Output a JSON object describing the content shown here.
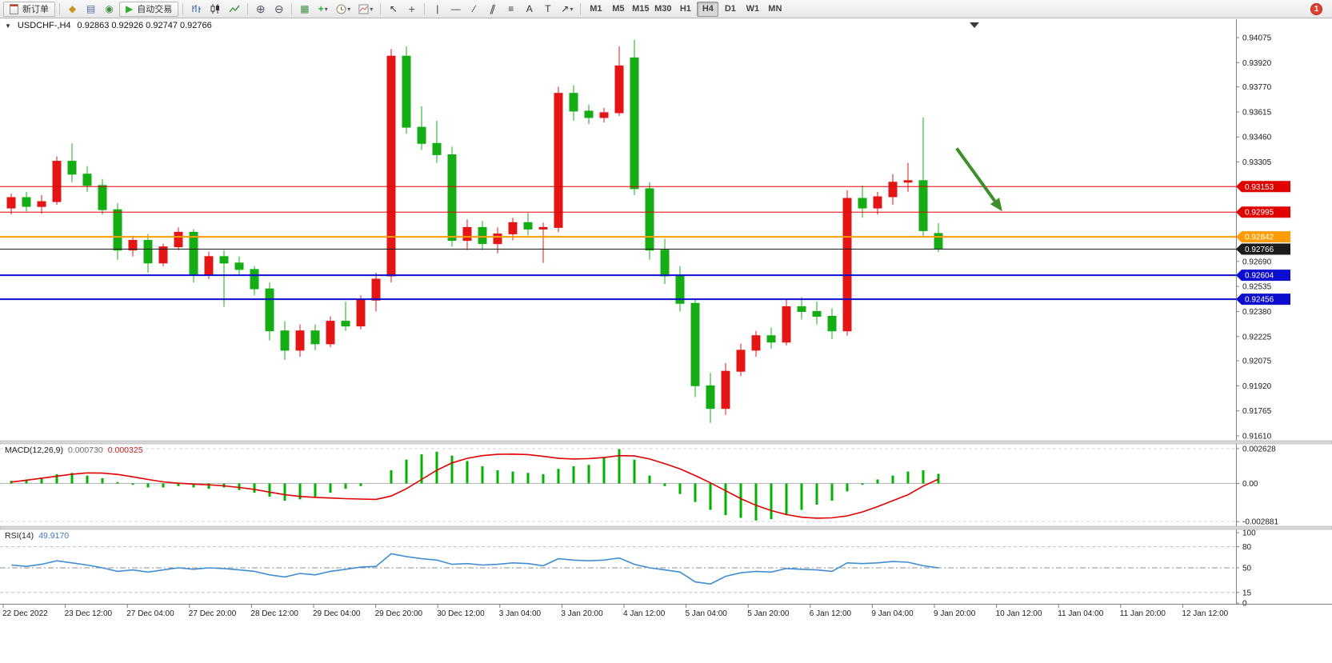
{
  "toolbar": {
    "new_order_label": "新订单",
    "auto_trading_label": "自动交易",
    "timeframes": [
      "M1",
      "M5",
      "M15",
      "M30",
      "H1",
      "H4",
      "D1",
      "W1",
      "MN"
    ],
    "active_timeframe": "H4",
    "notification_count": "1"
  },
  "icons": {
    "one_click": "▼",
    "dropdown": "▾",
    "symbols": "◆",
    "market_watch": "▤",
    "navigator": "◉",
    "auto_play": "▶",
    "zoom_in": "⊕",
    "zoom_out": "⊖",
    "tile": "▦",
    "indicator_plus": "+",
    "cursor": "↖",
    "crosshair": "+",
    "vline": "|",
    "hline": "—",
    "trend": "∕",
    "channel": "∥",
    "fibo": "≡",
    "text": "A",
    "label": "T",
    "shapes": "↗"
  },
  "chart": {
    "title_symbol": "USDCHF-,H4",
    "title_ohlc": "0.92863 0.92926 0.92747 0.92766"
  },
  "chart_data": {
    "type": "candlestick",
    "symbol": "USDCHF-",
    "timeframe": "H4",
    "ohlc_display": {
      "open": "0.92863",
      "high": "0.92926",
      "low": "0.92747",
      "close": "0.92766"
    },
    "colors": {
      "up": "#e31515",
      "down": "#14ad14"
    },
    "candles": [
      [
        0.9302,
        0.9311,
        0.9298,
        0.93085
      ],
      [
        0.93085,
        0.9312,
        0.93,
        0.9303
      ],
      [
        0.9303,
        0.931,
        0.92985,
        0.9306
      ],
      [
        0.9306,
        0.9334,
        0.9304,
        0.9331
      ],
      [
        0.9331,
        0.9342,
        0.9318,
        0.9323
      ],
      [
        0.9323,
        0.9328,
        0.9312,
        0.9316
      ],
      [
        0.9316,
        0.932,
        0.9298,
        0.9301
      ],
      [
        0.9301,
        0.9305,
        0.927,
        0.9276
      ],
      [
        0.9276,
        0.9285,
        0.9272,
        0.9282
      ],
      [
        0.9282,
        0.9286,
        0.9262,
        0.9268
      ],
      [
        0.9268,
        0.928,
        0.9266,
        0.9278
      ],
      [
        0.9278,
        0.929,
        0.9276,
        0.9287
      ],
      [
        0.9287,
        0.9289,
        0.9256,
        0.9261
      ],
      [
        0.9261,
        0.9275,
        0.9258,
        0.9272
      ],
      [
        0.9272,
        0.9276,
        0.9241,
        0.9268
      ],
      [
        0.9268,
        0.9272,
        0.926,
        0.9264
      ],
      [
        0.9264,
        0.9266,
        0.9248,
        0.9252
      ],
      [
        0.9252,
        0.9256,
        0.922,
        0.9226
      ],
      [
        0.9226,
        0.9232,
        0.9208,
        0.9214
      ],
      [
        0.9214,
        0.923,
        0.921,
        0.9226
      ],
      [
        0.9226,
        0.923,
        0.9214,
        0.9218
      ],
      [
        0.9218,
        0.9235,
        0.9216,
        0.9232
      ],
      [
        0.9232,
        0.9244,
        0.9226,
        0.9229
      ],
      [
        0.9229,
        0.9248,
        0.9227,
        0.9245
      ],
      [
        0.9245,
        0.9262,
        0.9238,
        0.9258
      ],
      [
        0.926,
        0.94005,
        0.9256,
        0.9396
      ],
      [
        0.9396,
        0.9402,
        0.9348,
        0.9352
      ],
      [
        0.9352,
        0.9365,
        0.9338,
        0.9342
      ],
      [
        0.9342,
        0.9356,
        0.933,
        0.9335
      ],
      [
        0.9335,
        0.934,
        0.9278,
        0.9282
      ],
      [
        0.9282,
        0.9295,
        0.9276,
        0.929
      ],
      [
        0.929,
        0.9294,
        0.9276,
        0.928
      ],
      [
        0.928,
        0.929,
        0.9274,
        0.9286
      ],
      [
        0.9286,
        0.9296,
        0.9282,
        0.9293
      ],
      [
        0.9293,
        0.9299,
        0.9285,
        0.9289
      ],
      [
        0.9289,
        0.9293,
        0.9268,
        0.929
      ],
      [
        0.929,
        0.9377,
        0.9287,
        0.9373
      ],
      [
        0.9373,
        0.9378,
        0.9356,
        0.9362
      ],
      [
        0.9362,
        0.9366,
        0.9354,
        0.9358
      ],
      [
        0.9358,
        0.9364,
        0.9355,
        0.9361
      ],
      [
        0.9361,
        0.9402,
        0.9359,
        0.939
      ],
      [
        0.9395,
        0.9406,
        0.931,
        0.9314
      ],
      [
        0.9314,
        0.9318,
        0.927,
        0.9276
      ],
      [
        0.9276,
        0.9283,
        0.9255,
        0.926
      ],
      [
        0.926,
        0.9266,
        0.9238,
        0.9243
      ],
      [
        0.9243,
        0.9246,
        0.9185,
        0.9192
      ],
      [
        0.9192,
        0.92,
        0.9169,
        0.9178
      ],
      [
        0.9178,
        0.9206,
        0.9174,
        0.9201
      ],
      [
        0.9201,
        0.9218,
        0.9198,
        0.9214
      ],
      [
        0.9214,
        0.9226,
        0.921,
        0.9223
      ],
      [
        0.9223,
        0.9228,
        0.9215,
        0.9219
      ],
      [
        0.9219,
        0.9246,
        0.9217,
        0.9241
      ],
      [
        0.9241,
        0.9247,
        0.9233,
        0.9238
      ],
      [
        0.9238,
        0.9244,
        0.923,
        0.9235
      ],
      [
        0.9235,
        0.924,
        0.9221,
        0.9226
      ],
      [
        0.9226,
        0.9313,
        0.9223,
        0.9308
      ],
      [
        0.9308,
        0.9316,
        0.9296,
        0.9302
      ],
      [
        0.9302,
        0.9312,
        0.9298,
        0.9309
      ],
      [
        0.9309,
        0.9323,
        0.9304,
        0.9318
      ],
      [
        0.9318,
        0.933,
        0.9312,
        0.9319
      ],
      [
        0.9319,
        0.9358,
        0.9284,
        0.9288
      ],
      [
        0.92863,
        0.92926,
        0.92747,
        0.92766
      ]
    ],
    "price_axis_ticks": [
      "0.94075",
      "0.93920",
      "0.93770",
      "0.93615",
      "0.93460",
      "0.93305",
      "0.92690",
      "0.92535",
      "0.92380",
      "0.92225",
      "0.92075",
      "0.91920",
      "0.91765",
      "0.91610"
    ],
    "level_lines": [
      {
        "price": 0.93153,
        "label": "0.93153",
        "color": "#e00000",
        "width": 1
      },
      {
        "price": 0.92995,
        "label": "0.92995",
        "color": "#e00000",
        "width": 1
      },
      {
        "price": 0.92842,
        "label": "0.92842",
        "color": "#ff9d00",
        "width": 2
      },
      {
        "price": 0.92766,
        "label": "0.92766",
        "color": "#1c1c1c",
        "width": 1
      },
      {
        "price": 0.92604,
        "label": "0.92604",
        "color": "#0d0dd0",
        "width": 2
      },
      {
        "price": 0.92456,
        "label": "0.92456",
        "color": "#0d0dd0",
        "width": 2
      }
    ],
    "time_labels": [
      "22 Dec 2022",
      "23 Dec 12:00",
      "27 Dec 04:00",
      "27 Dec 20:00",
      "28 Dec 12:00",
      "29 Dec 04:00",
      "29 Dec 20:00",
      "30 Dec 12:00",
      "3 Jan 04:00",
      "3 Jan 20:00",
      "4 Jan 12:00",
      "5 Jan 04:00",
      "5 Jan 20:00",
      "6 Jan 12:00",
      "9 Jan 04:00",
      "9 Jan 20:00",
      "10 Jan 12:00",
      "11 Jan 04:00",
      "11 Jan 20:00",
      "12 Jan 12:00"
    ],
    "macd": {
      "title": "MACD(12,26,9)",
      "value_main": "0.000730",
      "value_signal": "0.000325",
      "hist_color": "#00b300",
      "signal_color": "#e00000",
      "axis": [
        {
          "label": "0.002628",
          "value": 0.002628
        },
        {
          "label": "0.00",
          "value": 0
        },
        {
          "label": "-0.002881",
          "value": -0.002881
        }
      ],
      "histogram": [
        0.0002,
        0.0003,
        0.0004,
        0.0007,
        0.0008,
        0.0006,
        0.0004,
        0.0001,
        -0.0001,
        -0.0003,
        -0.0003,
        -0.0002,
        -0.0003,
        -0.0004,
        -0.0003,
        -0.0005,
        -0.0007,
        -0.001,
        -0.0013,
        -0.0012,
        -0.001,
        -0.0007,
        -0.0004,
        -0.0002,
        0,
        0.001,
        0.0018,
        0.0022,
        0.0024,
        0.0021,
        0.0017,
        0.0013,
        0.001,
        0.0009,
        0.0008,
        0.0007,
        0.0011,
        0.0013,
        0.0014,
        0.002,
        0.0026,
        0.0018,
        0.0006,
        -0.0002,
        -0.0008,
        -0.0014,
        -0.002,
        -0.0024,
        -0.0026,
        -0.0028,
        -0.0027,
        -0.0024,
        -0.002,
        -0.0016,
        -0.0013,
        -0.0006,
        -0.0001,
        0.0003,
        0.0006,
        0.0009,
        0.001,
        0.00073
      ],
      "signal": [
        0.0001,
        0.00025,
        0.0004,
        0.00055,
        0.0007,
        0.0008,
        0.00078,
        0.00068,
        0.0005,
        0.0003,
        0.00012,
        2e-05,
        -5e-05,
        -0.0001,
        -0.00018,
        -0.0003,
        -0.00045,
        -0.00065,
        -0.00085,
        -0.00098,
        -0.00105,
        -0.0011,
        -0.00115,
        -0.00118,
        -0.0012,
        -0.00095,
        -0.0004,
        0.0003,
        0.001,
        0.00155,
        0.0019,
        0.0021,
        0.0022,
        0.00222,
        0.00218,
        0.00205,
        0.0019,
        0.00185,
        0.00188,
        0.00196,
        0.0021,
        0.00208,
        0.00185,
        0.0015,
        0.0011,
        0.0006,
        5e-05,
        -0.00055,
        -0.00115,
        -0.00165,
        -0.00205,
        -0.00235,
        -0.00255,
        -0.00262,
        -0.0026,
        -0.00245,
        -0.00215,
        -0.00175,
        -0.0013,
        -0.00085,
        -0.0002,
        0.000325
      ]
    },
    "rsi": {
      "title": "RSI(14)",
      "value": "49.9170",
      "line_color": "#3f8fd2",
      "levels": [
        80,
        50,
        15
      ],
      "axis": [
        {
          "label": "100",
          "value": 100
        },
        {
          "label": "80",
          "value": 80
        },
        {
          "label": "50",
          "value": 50
        },
        {
          "label": "15",
          "value": 15
        },
        {
          "label": "0",
          "value": 0
        }
      ],
      "values": [
        54,
        52,
        55,
        60,
        57,
        54,
        50,
        45,
        47,
        44,
        47,
        50,
        48,
        50,
        49,
        47,
        45,
        40,
        37,
        42,
        40,
        45,
        48,
        51,
        52,
        70,
        66,
        63,
        61,
        55,
        56,
        54,
        55,
        57,
        56,
        53,
        63,
        61,
        60,
        61,
        64,
        55,
        50,
        47,
        44,
        30,
        27,
        38,
        43,
        45,
        44,
        49,
        48,
        47,
        45,
        57,
        56,
        57,
        59,
        58,
        53,
        49.917
      ],
      "ylim": [
        0,
        100
      ]
    },
    "annotation_arrow": {
      "from_slot": 62.2,
      "from_price": 0.9339,
      "to_slot": 65.2,
      "to_price": 0.93,
      "color": "#3f8f29",
      "width": 4
    }
  }
}
